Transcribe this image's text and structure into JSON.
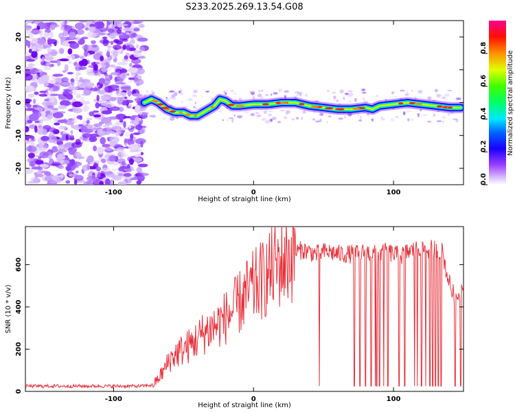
{
  "title": "S233.2025.269.13.54.G08",
  "chart_data": [
    {
      "type": "heatmap",
      "xlabel": "Height of straight line (km)",
      "ylabel": "Frequency (Hz)",
      "xlim": [
        -163,
        150
      ],
      "ylim": [
        -25,
        25
      ],
      "xticks": [
        -100,
        0,
        100
      ],
      "yticks": [
        -20,
        -10,
        0,
        10,
        20
      ],
      "noise_region_x": [
        -163,
        -78
      ],
      "ridge": {
        "x": [
          -78,
          -73,
          -68,
          -62,
          -56,
          -50,
          -45,
          -40,
          -36,
          -32,
          -28,
          -24,
          -20,
          -15,
          -10,
          0,
          10,
          20,
          30,
          40,
          50,
          60,
          70,
          80,
          85,
          90,
          100,
          110,
          120,
          130,
          140,
          148
        ],
        "y": [
          0,
          1,
          0,
          -2,
          -3,
          -3,
          -4,
          -4,
          -3,
          -2,
          -1,
          1,
          0.5,
          -1,
          -1,
          -0.5,
          -0.5,
          0,
          0,
          -1,
          -1.5,
          -2,
          -2,
          -1.5,
          -2,
          -1,
          -0.5,
          0,
          -0.5,
          -1,
          -1.5,
          -1.5
        ]
      },
      "colorbar": {
        "label": "Normalized spectral amplitude",
        "ticks": [
          0.0,
          0.2,
          0.4,
          0.6,
          0.8
        ],
        "range": [
          0,
          1
        ],
        "colors": [
          "#ffffff",
          "#c9a4ff",
          "#7a00ff",
          "#0000ff",
          "#00e0ff",
          "#00ff40",
          "#c8ff00",
          "#ff9900",
          "#ff0000",
          "#ff0088"
        ]
      }
    },
    {
      "type": "line",
      "xlabel": "Height of straight line (km)",
      "ylabel": "SNR (10 * v/v)",
      "xlim": [
        -163,
        150
      ],
      "ylim": [
        0,
        780
      ],
      "xticks": [
        -100,
        0,
        100
      ],
      "yticks": [
        0,
        200,
        400,
        600
      ],
      "color": "#e8303a",
      "series": [
        {
          "name": "SNR",
          "x": [
            -163,
            -140,
            -120,
            -100,
            -80,
            -72,
            -68,
            -64,
            -60,
            -55,
            -50,
            -45,
            -40,
            -35,
            -30,
            -25,
            -20,
            -15,
            -10,
            -5,
            0,
            5,
            10,
            15,
            20,
            25,
            30,
            35,
            40,
            45,
            50,
            55,
            60,
            65,
            70,
            75,
            80,
            85,
            90,
            95,
            100,
            105,
            110,
            115,
            120,
            125,
            130,
            135,
            138,
            142,
            145,
            150
          ],
          "y": [
            25,
            25,
            25,
            25,
            25,
            30,
            60,
            100,
            150,
            180,
            200,
            220,
            250,
            280,
            300,
            320,
            350,
            380,
            420,
            460,
            490,
            520,
            550,
            590,
            610,
            630,
            660,
            670,
            660,
            650,
            660,
            660,
            650,
            650,
            650,
            650,
            660,
            650,
            650,
            660,
            650,
            640,
            660,
            670,
            680,
            670,
            680,
            660,
            560,
            470,
            440,
            520
          ]
        }
      ],
      "dropouts_x": [
        47,
        72,
        76,
        80,
        84,
        87,
        88,
        90,
        93,
        96,
        104,
        108,
        115,
        117,
        120,
        123,
        126,
        128,
        130,
        132,
        134,
        144,
        148
      ]
    }
  ]
}
